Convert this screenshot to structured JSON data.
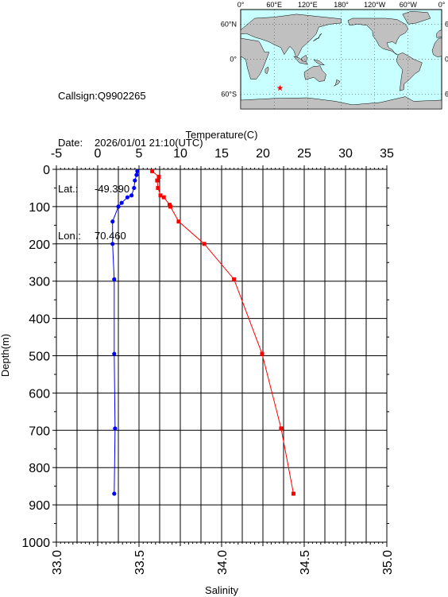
{
  "station": {
    "callsign_label": "Callsign:",
    "callsign": "Q9902265",
    "date_label": "Date:",
    "date": "2026/01/01 21:10(UTC)",
    "lat_label": "Lat.:",
    "lat": "-49.390",
    "lon_label": "Lon.:",
    "lon": "70.460"
  },
  "map": {
    "lon_ticks": [
      "0°",
      "60°E",
      "120°E",
      "180°",
      "120°W",
      "60°W",
      "0°"
    ],
    "lat_ticks": [
      "60°N",
      "0°",
      "60°S"
    ],
    "marker": {
      "lon": 70.46,
      "lat": -49.39,
      "symbol": "star",
      "color": "#ff0000"
    },
    "ocean_color": "#c8ffff",
    "land_color": "#c0c0c0"
  },
  "chart_data": {
    "type": "line",
    "y_axis": {
      "label": "Depth(m)",
      "range": [
        1000,
        0
      ],
      "ticks": [
        "0",
        "100",
        "200",
        "300",
        "400",
        "500",
        "600",
        "700",
        "800",
        "900",
        "1000"
      ]
    },
    "x_axis_top": {
      "label": "Temperature(C)",
      "range": [
        -5,
        35
      ],
      "ticks": [
        "-5",
        "0",
        "5",
        "10",
        "15",
        "20",
        "25",
        "30",
        "35"
      ]
    },
    "x_axis_bottom": {
      "label": "Salinity",
      "range": [
        33.0,
        35.0
      ],
      "ticks": [
        "33.0",
        "33.5",
        "34.0",
        "34.5",
        "35.0"
      ]
    },
    "grid": true,
    "series": [
      {
        "quantity": "temperature",
        "axis": "top",
        "color": "#ff0000",
        "marker": "square",
        "depth": [
          5,
          20,
          30,
          50,
          70,
          75,
          95,
          100,
          140,
          200,
          295,
          495,
          695,
          870
        ],
        "values": [
          6.6,
          7.4,
          7.2,
          7.3,
          7.6,
          8.0,
          8.7,
          8.8,
          9.8,
          12.9,
          16.5,
          19.9,
          22.2,
          23.7
        ]
      },
      {
        "quantity": "salinity",
        "axis": "bottom",
        "color": "#0000ff",
        "marker": "circle",
        "depth": [
          5,
          15,
          30,
          50,
          70,
          75,
          90,
          100,
          140,
          200,
          295,
          495,
          695,
          870
        ],
        "values": [
          33.49,
          33.485,
          33.475,
          33.47,
          33.455,
          33.43,
          33.395,
          33.375,
          33.34,
          33.34,
          33.35,
          33.35,
          33.355,
          33.35
        ]
      }
    ]
  }
}
